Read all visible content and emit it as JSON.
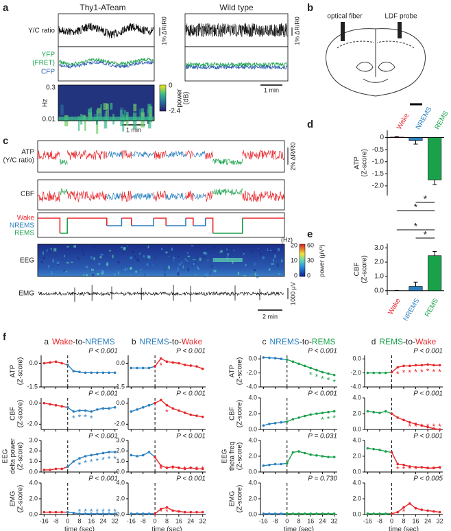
{
  "panels": {
    "a": {
      "label": "a",
      "left_title": "Thy1-ATeam",
      "right_title": "Wild type",
      "yc_label": "Y/C ratio",
      "yfp_label": [
        "YFP",
        "(FRET)"
      ],
      "cfp_label": "CFP",
      "scale_left": "1% ΔR/R0",
      "scale_right": "1% ΔR/R0",
      "hz_label": "Hz",
      "hz_ticks": [
        "0.3",
        "0.01"
      ],
      "cbar_ticks": [
        "0",
        "-2.4"
      ],
      "cbar_label": [
        "power",
        "(dB)"
      ],
      "time_left": "1 min",
      "time_right": "1 min"
    },
    "b": {
      "label": "b",
      "fiber": "optical fiber",
      "probe": "LDF probe"
    },
    "c": {
      "label": "c",
      "atp_label": [
        "ATP",
        "(Y/C ratio)"
      ],
      "atp_scale": "2% ΔR/R0",
      "cbf_label": "CBF",
      "states": [
        "Wake",
        "NREMS",
        "REMS"
      ],
      "eeg_label": "EEG",
      "hz_unit": "(Hz)",
      "hz_ticks": [
        "20",
        "10",
        "0"
      ],
      "power_ticks": [
        "60",
        "30",
        "0"
      ],
      "power_label": "power (μV²)",
      "emg_label": "EMG",
      "emg_scale": "1000 μV",
      "time_scale": "2 min"
    },
    "d": {
      "label": "d"
    },
    "e": {
      "label": "e"
    },
    "f": {
      "label": "f",
      "columns": [
        {
          "letter": "a",
          "from": "Wake",
          "sep": "-to-",
          "to": "NREMS",
          "from_color": "#e8262b",
          "to_color": "#2a7fc0"
        },
        {
          "letter": "b",
          "from": "NREMS",
          "sep": "-to-",
          "to": "Wake",
          "from_color": "#2a7fc0",
          "to_color": "#e8262b"
        },
        {
          "letter": "c",
          "from": "NREMS",
          "sep": "-to-",
          "to": "REMS",
          "from_color": "#2a7fc0",
          "to_color": "#1aa24b"
        },
        {
          "letter": "d",
          "from": "REMS",
          "sep": "-to-",
          "to": "Wake",
          "from_color": "#1aa24b",
          "to_color": "#e8262b"
        }
      ]
    }
  },
  "chart_data": [
    {
      "type": "bar",
      "ylabel": [
        "ATP",
        "(Z-score)"
      ],
      "categories": [
        "Wake",
        "NREMS",
        "REMS"
      ],
      "values": [
        0.02,
        -0.12,
        -1.75
      ],
      "errors": [
        0.02,
        0.15,
        0.2
      ],
      "colors": [
        "#e8262b",
        "#2a7fc0",
        "#1aa24b"
      ],
      "ylim": [
        -2.4,
        0.3
      ],
      "yticks": [
        0,
        -0.5,
        {
          "value": -1,
          "label": "-1.0"
        },
        -1.5,
        {
          "value": -2,
          "label": "-2.0"
        }
      ],
      "sig_label": "*"
    },
    {
      "type": "bar",
      "ylabel": [
        "CBF",
        "(Z-score)"
      ],
      "categories": [
        "Wake",
        "NREMS",
        "REMS"
      ],
      "values": [
        0,
        0.3,
        2.45
      ],
      "errors": [
        0.02,
        0.3,
        0.3
      ],
      "colors": [
        "#e8262b",
        "#2a7fc0",
        "#1aa24b"
      ],
      "ylim": [
        -0.3,
        3.3
      ],
      "yticks": [
        {
          "value": 0,
          "label": "0.0"
        },
        {
          "value": 1,
          "label": "1.0"
        },
        {
          "value": 2,
          "label": "2.0"
        },
        {
          "value": 3,
          "label": "3.0"
        }
      ],
      "sig_label": "*"
    },
    {
      "type": "line",
      "ylabel": [
        "ATP",
        "(Z-score)"
      ],
      "p_label": "P < 0.001",
      "x": [
        -16,
        -12,
        -8,
        -4,
        0,
        4,
        8,
        12,
        16,
        20,
        24,
        28,
        32
      ],
      "values": [
        0,
        0.05,
        0.1,
        0,
        -0.1,
        -0.5,
        -0.55,
        -0.6,
        -0.6,
        -0.6,
        -0.6,
        -0.6,
        -0.6
      ],
      "xlim": [
        -18,
        34
      ],
      "xticks": [
        -16,
        -8,
        0,
        8,
        16,
        24,
        32
      ],
      "ylim": [
        -1.5,
        0.5
      ],
      "yticks": [
        {
          "value": 0,
          "label": "0.0"
        },
        -1.5
      ]
    },
    {
      "type": "line",
      "ylabel": [
        "CBF",
        "(Z-score)"
      ],
      "p_label": "P < 0.001",
      "x": [
        -16,
        -12,
        -8,
        -4,
        0,
        4,
        8,
        12,
        16,
        20,
        24,
        28,
        32
      ],
      "values": [
        0,
        -0.1,
        -0.2,
        -0.3,
        -0.4,
        -0.8,
        -0.7,
        -0.7,
        -0.8,
        -0.6,
        -0.5,
        -0.5,
        -0.4
      ],
      "xlim": [
        -18,
        34
      ],
      "xticks": [
        -16,
        -8,
        0,
        8,
        16,
        24,
        32
      ],
      "ylim": [
        -2.5,
        0.5
      ],
      "yticks": [
        {
          "value": 0,
          "label": "0.0"
        },
        {
          "value": -2,
          "label": "-2.0"
        }
      ],
      "stars": [
        4,
        8,
        12,
        16
      ],
      "star": "*"
    },
    {
      "type": "line",
      "ylabel": [
        "EEG",
        "delta power",
        "(Z-score)"
      ],
      "p_label": "P < 0.001",
      "x": [
        -16,
        -12,
        -8,
        -4,
        0,
        4,
        8,
        12,
        16,
        20,
        24,
        28,
        32
      ],
      "values": [
        0.2,
        0.2,
        0.3,
        0.3,
        0.5,
        1.0,
        1.3,
        1.5,
        1.6,
        1.7,
        1.8,
        1.9,
        1.9
      ],
      "xlim": [
        -18,
        34
      ],
      "xticks": [
        -16,
        -8,
        0,
        8,
        16,
        24,
        32
      ],
      "ylim": [
        0,
        3
      ],
      "yticks": [
        {
          "value": 0,
          "label": "0.0"
        },
        {
          "value": 1,
          "label": "1.0"
        },
        {
          "value": 2,
          "label": "2.0"
        },
        {
          "value": 3,
          "label": "3.0"
        }
      ],
      "stars": [
        8,
        12,
        16,
        20,
        24,
        28,
        32
      ],
      "star": "*"
    },
    {
      "type": "line",
      "ylabel": [
        "EMG",
        "(Z-score)"
      ],
      "p_label": "P < 0.001",
      "x": [
        -16,
        -12,
        -8,
        -4,
        0,
        4,
        8,
        12,
        16,
        20,
        24,
        28,
        32
      ],
      "values": [
        0.3,
        0.3,
        0.3,
        0.3,
        0.3,
        0.2,
        0.1,
        0.1,
        0.1,
        0.1,
        0.1,
        0.1,
        0.1
      ],
      "xlim": [
        -18,
        34
      ],
      "xticks": [
        -16,
        -8,
        0,
        8,
        16,
        24,
        32
      ],
      "xlabel": "time (sec)",
      "ylim": [
        0,
        4
      ],
      "yticks": [
        {
          "value": 0,
          "label": "0.0"
        },
        {
          "value": 2,
          "label": "2.0"
        },
        {
          "value": 4,
          "label": "4.0"
        }
      ],
      "stars": [
        8,
        12,
        16,
        20,
        24,
        28,
        32
      ],
      "star": "*"
    },
    {
      "type": "line",
      "p_label": "P < 0.001",
      "x": [
        -16,
        -12,
        -8,
        -4,
        0,
        4,
        8,
        12,
        16,
        20,
        24,
        28,
        32
      ],
      "values": [
        -0.3,
        -0.3,
        -0.3,
        -0.3,
        -0.2,
        0.3,
        0.1,
        0.05,
        0,
        -0.1,
        -0.15,
        -0.2,
        -0.35
      ],
      "xlim": [
        -18,
        34
      ],
      "xticks": [
        -16,
        -8,
        0,
        8,
        16,
        24,
        32
      ],
      "ylim": [
        -1.5,
        0.5
      ],
      "yticks": [
        {
          "value": 0,
          "label": "0.0"
        },
        -1.5
      ],
      "stars": [
        4
      ],
      "star": "*"
    },
    {
      "type": "line",
      "p_label": "P < 0.001",
      "x": [
        -16,
        -12,
        -8,
        -4,
        0,
        4,
        8,
        12,
        16,
        20,
        24,
        28,
        32
      ],
      "values": [
        -0.8,
        -0.6,
        -0.4,
        -0.2,
        0,
        0.3,
        -0.2,
        -0.5,
        -0.7,
        -0.9,
        -1.1,
        -1.2,
        -1.3
      ],
      "xlim": [
        -18,
        34
      ],
      "xticks": [
        -16,
        -8,
        0,
        8,
        16,
        24,
        32
      ],
      "ylim": [
        -2.5,
        0.5
      ],
      "yticks": [
        {
          "value": 0,
          "label": "0.0"
        },
        {
          "value": -2,
          "label": "-2.0"
        }
      ],
      "stars": [
        8
      ],
      "star": "*"
    },
    {
      "type": "line",
      "p_label": "P < 0.001",
      "x": [
        -16,
        -12,
        -8,
        -4,
        0,
        4,
        8,
        12,
        16,
        20,
        24,
        28,
        32
      ],
      "values": [
        1.6,
        1.5,
        1.6,
        1.9,
        1.4,
        0.6,
        0.4,
        0.5,
        0.4,
        0.3,
        0.4,
        0.3,
        0.3
      ],
      "xlim": [
        -18,
        34
      ],
      "xticks": [
        -16,
        -8,
        0,
        8,
        16,
        24,
        32
      ],
      "ylim": [
        0,
        3
      ],
      "yticks": [
        {
          "value": 0,
          "label": "0.0"
        },
        {
          "value": 1,
          "label": "1.0"
        },
        {
          "value": 2,
          "label": "2.0"
        },
        {
          "value": 3,
          "label": "3.0"
        }
      ],
      "stars": [
        4,
        8,
        12,
        16,
        20,
        24,
        28,
        32
      ],
      "star": "*"
    },
    {
      "type": "line",
      "p_label": "P < 0.001",
      "x": [
        -16,
        -12,
        -8,
        -4,
        0,
        4,
        8,
        12,
        16,
        20,
        24,
        28,
        32
      ],
      "values": [
        0.1,
        0.1,
        0.1,
        0.1,
        0.1,
        0.7,
        0.9,
        0.5,
        0.4,
        0.3,
        0.3,
        0.3,
        0.3
      ],
      "xlim": [
        -18,
        34
      ],
      "xticks": [
        -16,
        -8,
        0,
        8,
        16,
        24,
        32
      ],
      "xlabel": "time (sec)",
      "ylim": [
        0,
        4
      ],
      "yticks": [
        {
          "value": 0,
          "label": "0.0"
        },
        {
          "value": 2,
          "label": "2.0"
        },
        {
          "value": 4,
          "label": "4.0"
        }
      ],
      "stars": [
        4,
        8
      ],
      "star": "*"
    },
    {
      "type": "line",
      "ylabel": [
        "ATP",
        "(Z-score)"
      ],
      "p_label": "P < 0.001",
      "x": [
        -16,
        -12,
        -8,
        -4,
        0,
        4,
        8,
        12,
        16,
        20,
        24,
        28,
        32
      ],
      "values": [
        0.2,
        0.15,
        0.1,
        0,
        -0.1,
        -0.4,
        -0.7,
        -1.0,
        -1.3,
        -1.6,
        -1.9,
        -2.1,
        -2.3
      ],
      "xlim": [
        -18,
        34
      ],
      "xticks": [
        -16,
        -8,
        0,
        8,
        16,
        24,
        32
      ],
      "ylim": [
        -4,
        0.5
      ],
      "yticks": [
        {
          "value": 0,
          "label": "0.0"
        },
        {
          "value": -2,
          "label": "-2.0"
        },
        {
          "value": -4,
          "label": "-4.0"
        }
      ],
      "stars": [
        16,
        20,
        24,
        28,
        32
      ],
      "star": "*"
    },
    {
      "type": "line",
      "ylabel": [
        "CBF",
        "(Z-score)"
      ],
      "p_label": "P < 0.001",
      "x": [
        -16,
        -12,
        -8,
        -4,
        0,
        4,
        8,
        12,
        16,
        20,
        24,
        28,
        32
      ],
      "values": [
        0.5,
        0.7,
        0.8,
        0.9,
        1.0,
        1.3,
        1.5,
        1.7,
        1.9,
        2.0,
        2.1,
        2.2,
        2.3
      ],
      "xlim": [
        -18,
        34
      ],
      "xticks": [
        -16,
        -8,
        0,
        8,
        16,
        24,
        32
      ],
      "ylim": [
        0,
        4
      ],
      "yticks": [
        {
          "value": 0,
          "label": "0.0"
        },
        {
          "value": 2,
          "label": "2.0"
        },
        {
          "value": 4,
          "label": "4.0"
        }
      ],
      "stars": [
        24,
        28,
        32
      ],
      "star": "*"
    },
    {
      "type": "line",
      "ylabel": [
        "EEG",
        "theta freq",
        "(Z-score)"
      ],
      "p_label": "P = 0.031",
      "x": [
        -16,
        -12,
        -8,
        -4,
        0,
        4,
        8,
        12,
        16,
        20,
        24,
        28,
        32
      ],
      "values": [
        0.8,
        0.9,
        1.0,
        1.0,
        1.1,
        2.5,
        2.6,
        2.4,
        2.2,
        2.1,
        2.0,
        1.9,
        1.9
      ],
      "xlim": [
        -18,
        34
      ],
      "xticks": [
        -16,
        -8,
        0,
        8,
        16,
        24,
        32
      ],
      "ylim": [
        0,
        4
      ],
      "yticks": [
        {
          "value": 0,
          "label": "0.0"
        },
        {
          "value": 2,
          "label": "2.0"
        },
        {
          "value": 4,
          "label": "4.0"
        }
      ]
    },
    {
      "type": "line",
      "ylabel": [
        "EMG",
        "(Z-score)"
      ],
      "p_label": "P = 0.730",
      "x": [
        -16,
        -12,
        -8,
        -4,
        0,
        4,
        8,
        12,
        16,
        20,
        24,
        28,
        32
      ],
      "values": [
        0.1,
        0.1,
        0.1,
        0.1,
        0.1,
        0.1,
        0.1,
        0.1,
        0.1,
        0.1,
        0.1,
        0.1,
        0.1
      ],
      "xlim": [
        -18,
        34
      ],
      "xticks": [
        -16,
        -8,
        0,
        8,
        16,
        24,
        32
      ],
      "xlabel": "time (sec)",
      "ylim": [
        0,
        4
      ],
      "yticks": [
        {
          "value": 0,
          "label": "0.0"
        },
        {
          "value": 2,
          "label": "2.0"
        },
        {
          "value": 4,
          "label": "4.0"
        }
      ]
    },
    {
      "type": "line",
      "p_label": "P < 0.001",
      "x": [
        -16,
        -12,
        -8,
        -4,
        0,
        4,
        8,
        12,
        16,
        20,
        24,
        28,
        32
      ],
      "values": [
        -2.0,
        -2.0,
        -2.0,
        -2.0,
        -1.9,
        -1.2,
        -1.0,
        -1.0,
        -0.9,
        -0.9,
        -0.8,
        -0.9,
        -0.9
      ],
      "xlim": [
        -18,
        34
      ],
      "xticks": [
        -16,
        -8,
        0,
        8,
        16,
        24,
        32
      ],
      "ylim": [
        -4,
        0.5
      ],
      "yticks": [
        {
          "value": 0,
          "label": "0.0"
        },
        {
          "value": -2,
          "label": "-2.0"
        },
        {
          "value": -4,
          "label": "-4.0"
        }
      ],
      "stars": [
        4,
        8,
        12,
        16,
        20,
        24,
        28,
        32
      ],
      "star": "*"
    },
    {
      "type": "line",
      "p_label": "P < 0.001",
      "x": [
        -16,
        -12,
        -8,
        -4,
        0,
        4,
        8,
        12,
        16,
        20,
        24,
        28,
        32
      ],
      "values": [
        2.3,
        2.2,
        2.1,
        2.3,
        2.0,
        1.5,
        1.2,
        0.9,
        0.7,
        0.5,
        0.3,
        0.1,
        0.0
      ],
      "xlim": [
        -18,
        34
      ],
      "xticks": [
        -16,
        -8,
        0,
        8,
        16,
        24,
        32
      ],
      "ylim": [
        0,
        4
      ],
      "yticks": [
        {
          "value": 0,
          "label": "0.0"
        },
        {
          "value": 2,
          "label": "2.0"
        },
        {
          "value": 4,
          "label": "4.0"
        }
      ],
      "stars": [
        12,
        16,
        20,
        24,
        28,
        32
      ],
      "star": "*"
    },
    {
      "type": "line",
      "p_label": "P < 0.001",
      "x": [
        -16,
        -12,
        -8,
        -4,
        0,
        4,
        8,
        12,
        16,
        20,
        24,
        28,
        32
      ],
      "values": [
        3.0,
        2.9,
        2.8,
        2.6,
        2.5,
        1.0,
        0.9,
        0.7,
        0.6,
        0.6,
        0.5,
        0.5,
        0.6
      ],
      "xlim": [
        -18,
        34
      ],
      "xticks": [
        -16,
        -8,
        0,
        8,
        16,
        24,
        32
      ],
      "ylim": [
        0,
        4
      ],
      "yticks": [
        {
          "value": 0,
          "label": "0.0"
        },
        {
          "value": 2,
          "label": "2.0"
        },
        {
          "value": 4,
          "label": "4.0"
        }
      ],
      "stars": [
        4,
        8,
        12,
        16,
        24,
        28,
        32
      ],
      "star": "*"
    },
    {
      "type": "line",
      "p_label": "P < 0.005",
      "x": [
        -16,
        -12,
        -8,
        -4,
        0,
        4,
        8,
        12,
        16,
        20,
        24,
        28,
        32
      ],
      "values": [
        0.1,
        0.1,
        0.1,
        0.1,
        0.1,
        0.3,
        0.9,
        1.4,
        0.8,
        0.6,
        0.5,
        0.4,
        0.3
      ],
      "xlim": [
        -18,
        34
      ],
      "xticks": [
        -16,
        -8,
        0,
        8,
        16,
        24,
        32
      ],
      "xlabel": "time (sec)",
      "ylim": [
        0,
        4
      ],
      "yticks": [
        {
          "value": 0,
          "label": "0.0"
        },
        {
          "value": 2,
          "label": "2.0"
        },
        {
          "value": 4,
          "label": "4.0"
        }
      ],
      "stars": [
        8
      ],
      "star": "*"
    }
  ]
}
